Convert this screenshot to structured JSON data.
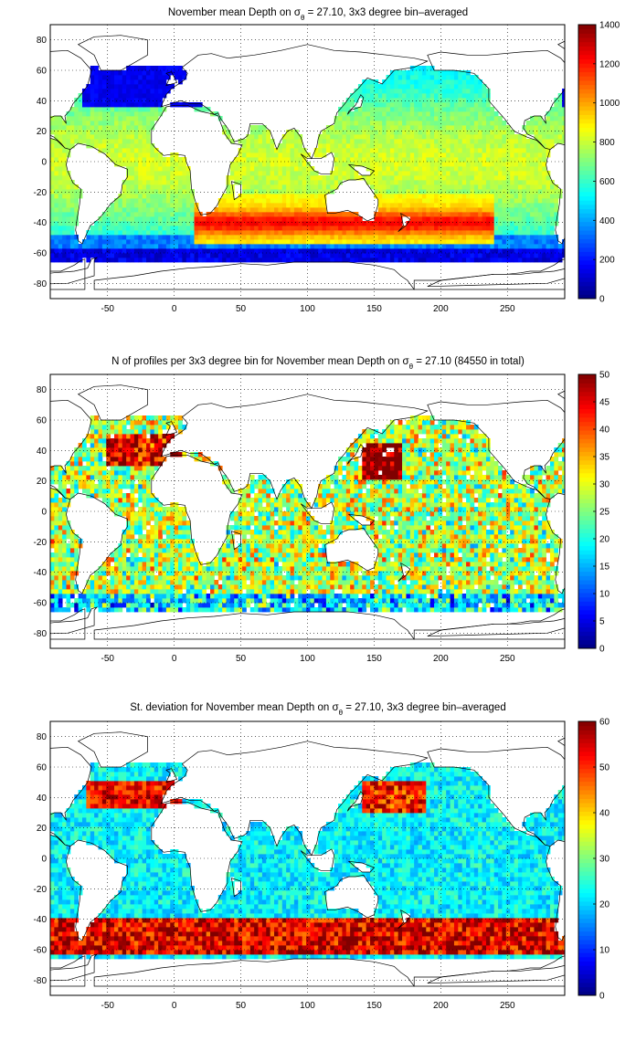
{
  "figure": {
    "panels": [
      {
        "id": "depth",
        "title_parts": [
          "November mean Depth on ",
          "σ",
          "θ",
          " = 27.10, 3x3 degree bin–averaged"
        ],
        "colorbar": {
          "min": 0,
          "max": 1400,
          "ticks": [
            "0",
            "200",
            "400",
            "600",
            "800",
            "1000",
            "1200",
            "1400"
          ]
        }
      },
      {
        "id": "count",
        "title_parts": [
          "N of profiles per 3x3 degree bin for November mean Depth on ",
          "σ",
          "θ",
          " = 27.10 (84550 in total)"
        ],
        "colorbar": {
          "min": 0,
          "max": 50,
          "ticks": [
            "0",
            "5",
            "10",
            "15",
            "20",
            "25",
            "30",
            "35",
            "40",
            "45",
            "50"
          ]
        }
      },
      {
        "id": "stdev",
        "title_parts": [
          "St. deviation for November mean Depth on ",
          "σ",
          "θ",
          " = 27.10, 3x3 degree bin–averaged"
        ],
        "colorbar": {
          "min": 0,
          "max": 60,
          "ticks": [
            "0",
            "10",
            "20",
            "30",
            "40",
            "50",
            "60"
          ]
        }
      }
    ],
    "x_ticks": [
      "-50",
      "0",
      "50",
      "100",
      "150",
      "200",
      "250"
    ],
    "y_ticks": [
      "80",
      "60",
      "40",
      "20",
      "0",
      "-20",
      "-40",
      "-60",
      "-80"
    ],
    "x_range": [
      -93,
      293
    ],
    "y_range": [
      -90,
      90
    ],
    "colormap": "jet",
    "total_profiles": "84550"
  }
}
